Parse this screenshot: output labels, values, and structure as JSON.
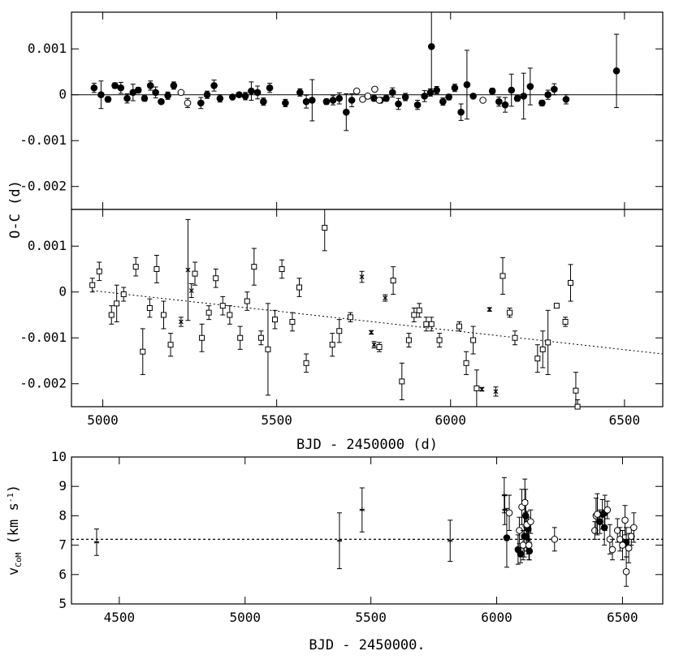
{
  "chart_data": [
    {
      "type": "scatter",
      "panel": "oc-top",
      "xlim": [
        4910,
        6610
      ],
      "ylim": [
        -0.0025,
        0.0018
      ],
      "yticks": [
        0.001,
        0,
        -0.001,
        -0.002
      ],
      "ytick_labels": [
        "0.001",
        "0",
        "-0.001",
        "-0.002"
      ],
      "ylabel": "O-C (d)",
      "hline": 0,
      "series": [
        {
          "marker": "filled-circle",
          "points": [
            [
              4975,
              0.00015,
              0.0001
            ],
            [
              4995,
              0.0,
              0.0003
            ],
            [
              5015,
              -0.0001,
              6e-05
            ],
            [
              5035,
              0.0002,
              6e-05
            ],
            [
              5052,
              0.00015,
              0.00012
            ],
            [
              5070,
              -8e-05,
              0.0001
            ],
            [
              5087,
              5e-05,
              0.00018
            ],
            [
              5102,
              0.0001,
              6e-05
            ],
            [
              5120,
              -8e-05,
              6e-05
            ],
            [
              5137,
              0.0002,
              0.0001
            ],
            [
              5152,
              5e-05,
              0.00012
            ],
            [
              5168,
              -0.00015,
              4e-05
            ],
            [
              5187,
              -2e-05,
              8e-05
            ],
            [
              5204,
              0.0002,
              8e-05
            ],
            [
              5282,
              -0.00018,
              0.00012
            ],
            [
              5300,
              0.0,
              8e-05
            ],
            [
              5320,
              0.0002,
              0.00012
            ],
            [
              5337,
              -8e-05,
              8e-05
            ],
            [
              5373,
              -5e-05,
              4e-05
            ],
            [
              5392,
              0.0,
              4e-05
            ],
            [
              5410,
              -3e-05,
              8e-05
            ],
            [
              5427,
              8e-05,
              0.0002
            ],
            [
              5445,
              5e-05,
              0.00014
            ],
            [
              5462,
              -0.00015,
              8e-05
            ],
            [
              5480,
              0.00015,
              0.0001
            ],
            [
              5525,
              -0.00018,
              8e-05
            ],
            [
              5567,
              5e-05,
              8e-05
            ],
            [
              5585,
              -0.00015,
              0.00014
            ],
            [
              5602,
              -0.00012,
              0.00045
            ],
            [
              5643,
              -0.00015,
              6e-05
            ],
            [
              5662,
              -0.00012,
              0.0001
            ],
            [
              5680,
              -8e-05,
              0.00012
            ],
            [
              5700,
              -0.00038,
              0.0004
            ],
            [
              5716,
              -0.00012,
              0.00014
            ],
            [
              5780,
              -8e-05,
              6e-05
            ],
            [
              5798,
              -0.00012,
              6e-05
            ],
            [
              5815,
              -8e-05,
              6e-05
            ],
            [
              5833,
              5e-05,
              0.0001
            ],
            [
              5850,
              -0.0002,
              0.00012
            ],
            [
              5870,
              -5e-05,
              8e-05
            ],
            [
              5945,
              0.00105,
              0.001
            ],
            [
              5905,
              -0.00022,
              0.0001
            ],
            [
              5925,
              -3e-05,
              0.00012
            ],
            [
              5942,
              5e-05,
              8e-05
            ],
            [
              5960,
              0.0001,
              8e-05
            ],
            [
              5978,
              -0.00015,
              8e-05
            ],
            [
              5995,
              -5e-05,
              6e-05
            ],
            [
              6012,
              0.00015,
              8e-05
            ],
            [
              6030,
              -0.00038,
              0.00018
            ],
            [
              6047,
              0.00022,
              0.00075
            ],
            [
              6065,
              -3e-05,
              4e-05
            ],
            [
              6120,
              8e-05,
              6e-05
            ],
            [
              6139,
              -0.00015,
              0.0001
            ],
            [
              6157,
              -0.00022,
              0.00016
            ],
            [
              6175,
              0.0001,
              0.00035
            ],
            [
              6192,
              -8e-05,
              6e-05
            ],
            [
              6210,
              -3e-05,
              0.0005
            ],
            [
              6229,
              0.00018,
              0.0004
            ],
            [
              6263,
              -0.00018,
              6e-05
            ],
            [
              6280,
              0.0,
              0.0001
            ],
            [
              6298,
              0.00012,
              0.00012
            ],
            [
              6332,
              -0.0001,
              0.0001
            ],
            [
              6477,
              0.00052,
              0.0008
            ]
          ]
        },
        {
          "marker": "open-circle",
          "points": [
            [
              5225,
              5e-05,
              4e-05
            ],
            [
              5244,
              -0.00018,
              0.0001
            ],
            [
              5730,
              8e-05,
              4e-05
            ],
            [
              5747,
              -0.0001,
              4e-05
            ],
            [
              5762,
              -3e-05,
              4e-05
            ],
            [
              5782,
              0.00012,
              4e-05
            ],
            [
              5795,
              -0.00012,
              4e-05
            ],
            [
              6093,
              -0.00012,
              4e-05
            ]
          ]
        }
      ]
    },
    {
      "type": "scatter",
      "panel": "oc-middle",
      "xlim": [
        4910,
        6610
      ],
      "ylim": [
        -0.0025,
        0.0018
      ],
      "xticks": [
        5000,
        5500,
        6000,
        6500
      ],
      "xtick_labels": [
        "5000",
        "5500",
        "6000",
        "6500"
      ],
      "yticks": [
        0.001,
        0,
        -0.001,
        -0.002
      ],
      "ytick_labels": [
        "0.001",
        "0",
        "-0.001",
        "-0.002"
      ],
      "xlabel": "BJD - 2450000 (d)",
      "trend_line": [
        [
          4970,
          3e-05
        ],
        [
          6610,
          -0.00135
        ]
      ],
      "series": [
        {
          "marker": "open-square",
          "points": [
            [
              4970,
              0.00015,
              0.00015
            ],
            [
              4990,
              0.00045,
              0.0002
            ],
            [
              5025,
              -0.0005,
              0.0002
            ],
            [
              5040,
              -0.00025,
              0.0004
            ],
            [
              5060,
              -5e-05,
              0.00015
            ],
            [
              5095,
              0.00055,
              0.0002
            ],
            [
              5115,
              -0.0013,
              0.0005
            ],
            [
              5135,
              -0.00035,
              0.0002
            ],
            [
              5155,
              0.0005,
              0.0003
            ],
            [
              5175,
              -0.0005,
              0.0003
            ],
            [
              5195,
              -0.00115,
              0.00025
            ],
            [
              5265,
              0.0004,
              0.00025
            ],
            [
              5285,
              -0.001,
              0.0003
            ],
            [
              5305,
              -0.00045,
              0.00015
            ],
            [
              5325,
              0.0003,
              0.0002
            ],
            [
              5345,
              -0.0003,
              0.0002
            ],
            [
              5365,
              -0.0005,
              0.0002
            ],
            [
              5395,
              -0.001,
              0.00025
            ],
            [
              5415,
              -0.0002,
              0.0002
            ],
            [
              5435,
              0.00055,
              0.0004
            ],
            [
              5455,
              -0.001,
              0.00015
            ],
            [
              5475,
              -0.00125,
              0.001
            ],
            [
              5495,
              -0.0006,
              0.0002
            ],
            [
              5515,
              0.0005,
              0.0002
            ],
            [
              5545,
              -0.00065,
              0.0002
            ],
            [
              5565,
              0.0001,
              0.0002
            ],
            [
              5585,
              -0.00155,
              0.0002
            ],
            [
              5638,
              0.0014,
              0.0005
            ],
            [
              5660,
              -0.00115,
              0.00025
            ],
            [
              5680,
              -0.00085,
              0.00025
            ],
            [
              5712,
              -0.00055,
              0.0001
            ],
            [
              5795,
              -0.0012,
              0.0001
            ],
            [
              5835,
              0.00025,
              0.0003
            ],
            [
              5860,
              -0.00195,
              0.0004
            ],
            [
              5880,
              -0.00105,
              0.00015
            ],
            [
              5895,
              -0.0005,
              0.00015
            ],
            [
              5910,
              -0.0004,
              0.00015
            ],
            [
              5930,
              -0.0007,
              0.00015
            ],
            [
              5945,
              -0.0007,
              0.00015
            ],
            [
              5968,
              -0.00105,
              0.00015
            ],
            [
              6025,
              -0.00075,
              0.0001
            ],
            [
              6045,
              -0.00155,
              0.00025
            ],
            [
              6065,
              -0.00105,
              0.0003
            ],
            [
              6075,
              -0.0021,
              0.0004
            ],
            [
              6150,
              0.00035,
              0.0004
            ],
            [
              6170,
              -0.00045,
              0.0001
            ],
            [
              6185,
              -0.001,
              0.00015
            ],
            [
              6250,
              -0.00145,
              0.0003
            ],
            [
              6265,
              -0.00125,
              0.0004
            ],
            [
              6280,
              -0.0011,
              0.0007
            ],
            [
              6305,
              -0.0003,
              5e-05
            ],
            [
              6330,
              -0.00065,
              0.0001
            ],
            [
              6345,
              0.0002,
              0.0004
            ],
            [
              6360,
              -0.00215,
              0.0004
            ],
            [
              6365,
              -0.0025,
              0.00015
            ]
          ]
        },
        {
          "marker": "cross",
          "points": [
            [
              5225,
              -0.00065,
              0.0001
            ],
            [
              5245,
              0.00048,
              0.0011
            ],
            [
              5255,
              3e-05,
              0.00015
            ],
            [
              5745,
              0.00033,
              0.00012
            ],
            [
              5772,
              -0.00088,
              4e-05
            ],
            [
              5780,
              -0.00115,
              7e-05
            ],
            [
              5812,
              -0.00013,
              7e-05
            ],
            [
              6090,
              -0.00212,
              4e-05
            ],
            [
              6112,
              -0.00038,
              4e-05
            ],
            [
              6130,
              -0.00217,
              0.0001
            ]
          ]
        }
      ]
    },
    {
      "type": "scatter",
      "panel": "vcom-bottom",
      "xlim": [
        4310,
        6660
      ],
      "ylim": [
        5,
        10
      ],
      "xticks": [
        4500,
        5000,
        5500,
        6000,
        6500
      ],
      "xtick_labels": [
        "4500",
        "5000",
        "5500",
        "6000",
        "6500"
      ],
      "yticks": [
        5,
        6,
        7,
        8,
        9,
        10
      ],
      "ytick_labels": [
        "5",
        "6",
        "7",
        "8",
        "9",
        "10"
      ],
      "xlabel": "BJD - 2450000.",
      "ylabel": "v_CoM (km s^-1)",
      "ylabel_main": "v",
      "ylabel_sub": "CoM",
      "ylabel_rest": " (km s",
      "ylabel_sup": "-1",
      "ylabel_end": ")",
      "hline": 7.2,
      "series": [
        {
          "marker": "star",
          "points": [
            [
              4410,
              7.1,
              0.45
            ],
            [
              5375,
              7.15,
              0.95
            ],
            [
              5465,
              8.2,
              0.75
            ],
            [
              5815,
              7.15,
              0.7
            ],
            [
              6030,
              8.7,
              0.6
            ],
            [
              6032,
              8.2,
              0.5
            ],
            [
              6115,
              8.5,
              0.4
            ],
            [
              6125,
              7.2,
              0.5
            ]
          ]
        },
        {
          "marker": "filled-circle",
          "points": [
            [
              6040,
              7.25,
              1.0
            ],
            [
              6085,
              6.85,
              0.5
            ],
            [
              6095,
              6.7,
              0.3
            ],
            [
              6110,
              7.3,
              0.7
            ],
            [
              6115,
              8.0,
              0.4
            ],
            [
              6118,
              7.3,
              0.5
            ],
            [
              6125,
              7.55,
              0.4
            ],
            [
              6130,
              6.8,
              0.3
            ],
            [
              6410,
              7.8,
              0.4
            ],
            [
              6420,
              8.05,
              0.5
            ],
            [
              6428,
              7.6,
              0.6
            ],
            [
              6430,
              8.1,
              0.6
            ],
            [
              6515,
              7.1,
              0.5
            ]
          ]
        },
        {
          "marker": "open-circle",
          "points": [
            [
              6050,
              8.1,
              0.6
            ],
            [
              6090,
              7.5,
              0.45
            ],
            [
              6100,
              8.3,
              0.6
            ],
            [
              6105,
              7.0,
              0.5
            ],
            [
              6112,
              8.45,
              0.8
            ],
            [
              6120,
              7.7,
              0.45
            ],
            [
              6128,
              7.0,
              0.5
            ],
            [
              6135,
              7.8,
              0.4
            ],
            [
              6230,
              7.2,
              0.4
            ],
            [
              6390,
              7.5,
              0.3
            ],
            [
              6395,
              8.0,
              0.6
            ],
            [
              6400,
              8.05,
              0.7
            ],
            [
              6440,
              8.2,
              0.3
            ],
            [
              6450,
              7.2,
              0.5
            ],
            [
              6460,
              6.85,
              0.35
            ],
            [
              6480,
              7.5,
              0.4
            ],
            [
              6490,
              7.2,
              0.4
            ],
            [
              6500,
              7.0,
              0.5
            ],
            [
              6510,
              7.85,
              0.5
            ],
            [
              6515,
              6.1,
              0.5
            ],
            [
              6525,
              6.9,
              0.5
            ],
            [
              6535,
              7.3,
              0.3
            ],
            [
              6545,
              7.6,
              0.5
            ]
          ]
        }
      ]
    }
  ]
}
